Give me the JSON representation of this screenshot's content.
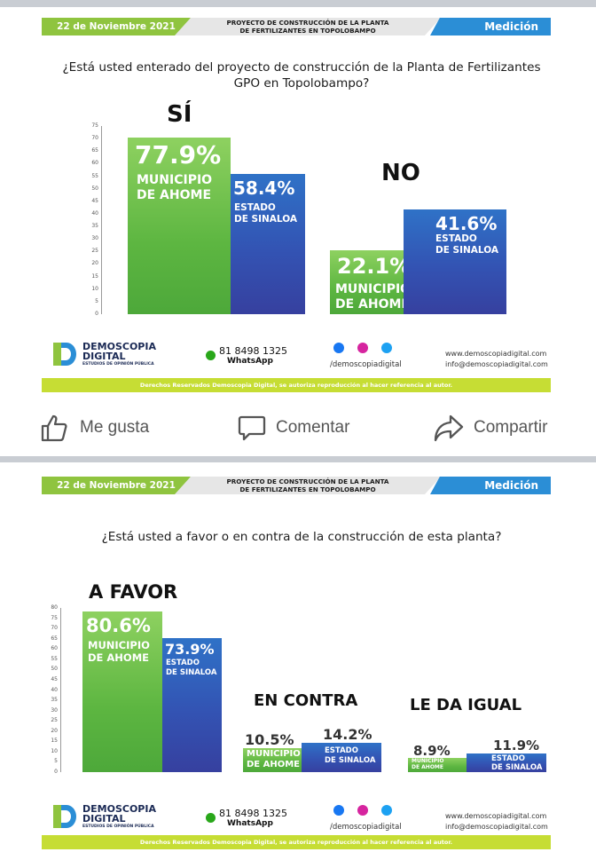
{
  "post1": {
    "header": {
      "date": "22 de Noviembre 2021",
      "project": "PROYECTO DE CONSTRUCCIÓN DE LA PLANTA\nDE FERTILIZANTES EN TOPOLOBAMPO",
      "section": "Medición"
    },
    "question": "¿Está usted enterado del proyecto de construcción de la Planta de Fertilizantes GPO en Topolobampo?",
    "groups": [
      {
        "label": "SÍ",
        "bars": [
          {
            "pct": "77.9%",
            "label": "MUNICIPIO\nDE AHOME"
          },
          {
            "pct": "58.4%",
            "label": "ESTADO\nDE SINALOA"
          }
        ]
      },
      {
        "label": "NO",
        "bars": [
          {
            "pct": "22.1%",
            "label": "MUNICIPIO\nDE AHOME"
          },
          {
            "pct": "41.6%",
            "label": "ESTADO\nDE SINALOA"
          }
        ]
      }
    ],
    "axis_ticks": [
      "75",
      "70",
      "65",
      "60",
      "55",
      "50",
      "45",
      "40",
      "35",
      "30",
      "25",
      "20",
      "15",
      "10",
      "5",
      "0"
    ]
  },
  "post2": {
    "header": {
      "date": "22 de Noviembre 2021",
      "project": "PROYECTO DE CONSTRUCCIÓN DE LA PLANTA\nDE FERTILIZANTES EN TOPOLOBAMPO",
      "section": "Medición"
    },
    "question": "¿Está usted a favor o en contra de la construcción de esta planta?",
    "groups": [
      {
        "label": "A FAVOR",
        "bars": [
          {
            "pct": "80.6%",
            "label": "MUNICIPIO\nDE AHOME"
          },
          {
            "pct": "73.9%",
            "label": "ESTADO\nDE SINALOA"
          }
        ]
      },
      {
        "label": "EN CONTRA",
        "bars": [
          {
            "pct": "10.5%",
            "label": "MUNICIPIO\nDE AHOME"
          },
          {
            "pct": "14.2%",
            "label": "ESTADO\nDE SINALOA"
          }
        ]
      },
      {
        "label": "LE DA IGUAL",
        "bars": [
          {
            "pct": "8.9%",
            "label": "MUNICIPIO\nDE AHOME"
          },
          {
            "pct": "11.9%",
            "label": "ESTADO\nDE SINALOA"
          }
        ]
      }
    ],
    "axis_ticks": [
      "80",
      "75",
      "70",
      "65",
      "60",
      "55",
      "50",
      "45",
      "40",
      "35",
      "30",
      "25",
      "20",
      "15",
      "10",
      "5",
      "0"
    ]
  },
  "footer": {
    "logo_name": "DEMOSCOPIA\nDIGITAL",
    "logo_sub": "ESTUDIOS DE OPINIÓN PÚBLICA",
    "phone": "81 8498 1325",
    "whatsapp": "WhatsApp",
    "handle": "/demoscopiadigital",
    "web": "www.demoscopiadigital.com",
    "email": "info@demoscopiadigital.com",
    "rights": "Derechos Reservados Demoscopia Digital, se autoriza reproducción al hacer referencia al autor."
  },
  "watermark": "DEMOSCOPIA\nDIGITAL",
  "actions": {
    "like": "Me gusta",
    "comment": "Comentar",
    "share": "Compartir"
  },
  "colors": {
    "green": "#5db641",
    "blue": "#3353b3",
    "lime": "#c6dd34",
    "header_blue": "#2b8ed6",
    "header_green": "#8fc43f"
  },
  "chart_data": [
    {
      "type": "bar",
      "title": "¿Está usted enterado del proyecto de construcción de la Planta de Fertilizantes GPO en Topolobampo?",
      "categories": [
        "SÍ",
        "NO"
      ],
      "series": [
        {
          "name": "MUNICIPIO DE AHOME",
          "values": [
            77.9,
            22.1
          ]
        },
        {
          "name": "ESTADO DE SINALOA",
          "values": [
            58.4,
            41.6
          ]
        }
      ],
      "ylim": [
        0,
        75
      ]
    },
    {
      "type": "bar",
      "title": "¿Está usted a favor o en contra de la construcción de esta planta?",
      "categories": [
        "A FAVOR",
        "EN CONTRA",
        "LE DA IGUAL"
      ],
      "series": [
        {
          "name": "MUNICIPIO DE AHOME",
          "values": [
            80.6,
            10.5,
            8.9
          ]
        },
        {
          "name": "ESTADO DE SINALOA",
          "values": [
            73.9,
            14.2,
            11.9
          ]
        }
      ],
      "ylim": [
        0,
        80
      ]
    }
  ]
}
